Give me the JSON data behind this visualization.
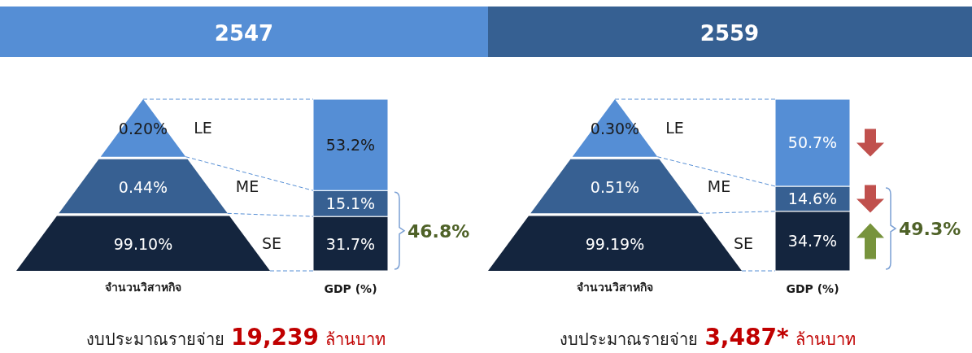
{
  "chart_data": [
    {
      "type": "other",
      "title": "2547",
      "xlabel": "จำนวนวิสาหกิจ",
      "categories": [
        "LE",
        "ME",
        "SE"
      ],
      "value_labels": [
        "0.20%",
        "0.44%",
        "99.10%"
      ],
      "colors": [
        "#558ed5",
        "#376092",
        "#14253e"
      ],
      "annotations": [
        "งบประมาณรายจ่าย",
        "19,239",
        "ล้านบาท"
      ]
    },
    {
      "type": "bar",
      "stacked": true,
      "xlabel": "GDP (%)",
      "categories": [
        null
      ],
      "annotations": [
        "46.8%"
      ],
      "series": [
        {
          "color": "#14253e",
          "values": [
            31.7
          ],
          "value_labels": [
            "31.7%"
          ]
        },
        {
          "color": "#376092",
          "values": [
            15.1
          ],
          "value_labels": [
            "15.1%"
          ]
        },
        {
          "color": "#558ed5",
          "values": [
            53.2
          ],
          "value_labels": [
            "53.2%"
          ]
        }
      ]
    },
    {
      "type": "other",
      "title": "2559",
      "xlabel": "จำนวนวิสาหกิจ",
      "categories": [
        "LE",
        "ME",
        "SE"
      ],
      "value_labels": [
        "0.30%",
        "0.51%",
        "99.19%"
      ],
      "colors": [
        "#558ed5",
        "#376092",
        "#14253e"
      ],
      "annotations": [
        "งบประมาณรายจ่าย",
        "3,487*",
        "ล้านบาท"
      ]
    },
    {
      "type": "bar",
      "stacked": true,
      "xlabel": "GDP (%)",
      "categories": [
        null
      ],
      "annotations": [
        "49.3%"
      ],
      "series": [
        {
          "color": "#14253e",
          "values": [
            34.7
          ],
          "value_labels": [
            "34.7%"
          ]
        },
        {
          "color": "#376092",
          "values": [
            14.6
          ],
          "value_labels": [
            "14.6%"
          ]
        },
        {
          "color": "#558ed5",
          "values": [
            50.7
          ],
          "value_labels": [
            "50.7%"
          ]
        }
      ]
    }
  ]
}
